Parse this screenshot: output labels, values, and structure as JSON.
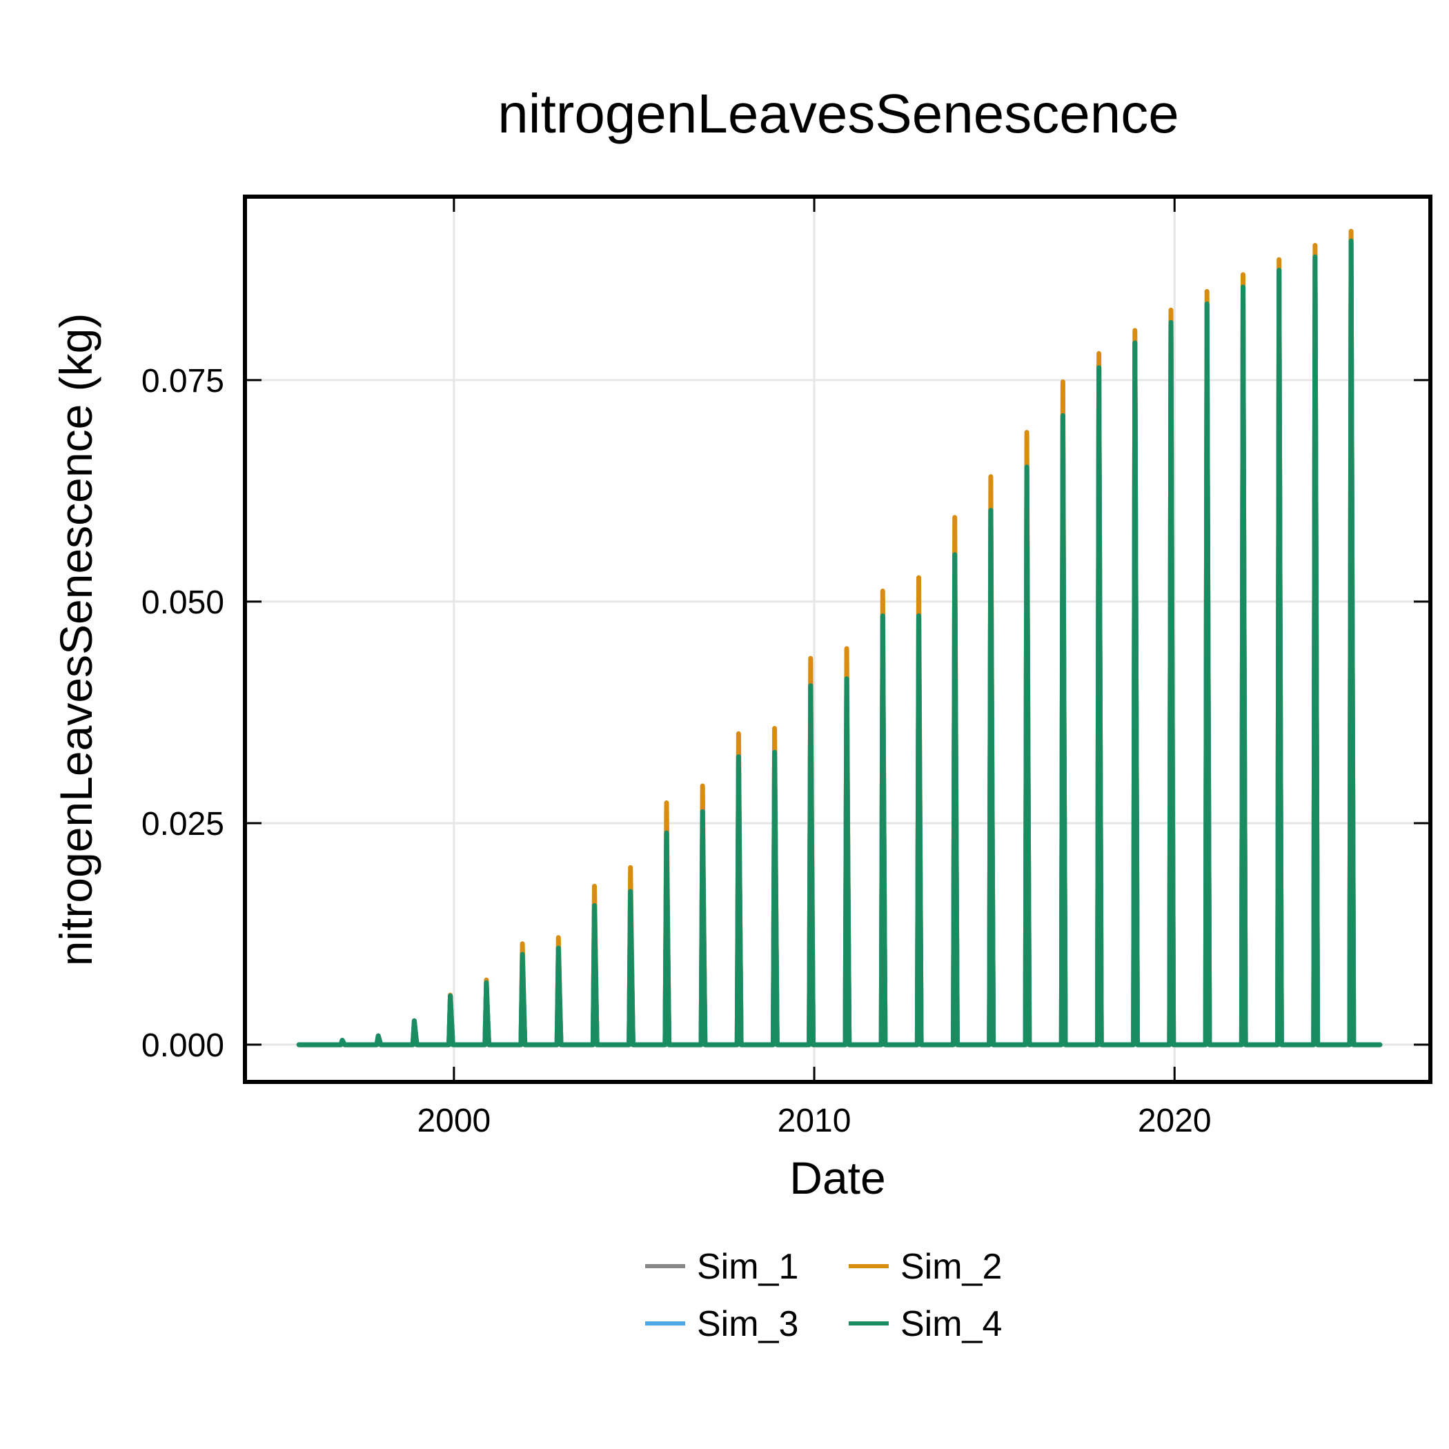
{
  "chart_data": {
    "type": "line",
    "title": "nitrogenLeavesSenescence",
    "xlabel": "Date",
    "ylabel": "nitrogenLeavesSenescence (kg)",
    "xlim": [
      1994.2,
      2027.1
    ],
    "ylim": [
      -0.0042,
      0.0957
    ],
    "x_ticks": [
      {
        "value": 2000,
        "label": "2000"
      },
      {
        "value": 2010,
        "label": "2010"
      },
      {
        "value": 2020,
        "label": "2020"
      }
    ],
    "y_ticks": [
      {
        "value": 0.0,
        "label": "0.000"
      },
      {
        "value": 0.025,
        "label": "0.025"
      },
      {
        "value": 0.05,
        "label": "0.050"
      },
      {
        "value": 0.075,
        "label": "0.075"
      }
    ],
    "grid": true,
    "legend_position": "bottom-center",
    "x_range_data": [
      1995.7,
      2025.7
    ],
    "peak_dates": [
      1996.9,
      1997.9,
      1998.9,
      1999.9,
      2000.9,
      2001.9,
      2002.9,
      2003.9,
      2004.9,
      2005.9,
      2006.9,
      2007.9,
      2008.9,
      2009.9,
      2010.9,
      2011.9,
      2012.9,
      2013.9,
      2014.9,
      2015.9,
      2016.9,
      2017.9,
      2018.9,
      2019.9,
      2020.9,
      2021.9,
      2022.9,
      2023.9,
      2024.9
    ],
    "series": [
      {
        "name": "Sim_1",
        "color": "#888888",
        "peaks": [
          0.0005,
          0.001,
          0.0027,
          0.0055,
          0.007,
          0.0102,
          0.0109,
          0.0157,
          0.0173,
          0.0239,
          0.0263,
          0.0325,
          0.033,
          0.0405,
          0.0413,
          0.0484,
          0.0484,
          0.0553,
          0.0603,
          0.0652,
          0.071,
          0.0764,
          0.0792,
          0.0815,
          0.0836,
          0.0855,
          0.0874,
          0.0889,
          0.0907
        ]
      },
      {
        "name": "Sim_2",
        "color": "#d88c10",
        "peaks": [
          0.0005,
          0.001,
          0.0027,
          0.0056,
          0.0073,
          0.0114,
          0.0121,
          0.0179,
          0.02,
          0.0273,
          0.0292,
          0.0351,
          0.0357,
          0.0436,
          0.0447,
          0.0512,
          0.0527,
          0.0595,
          0.0641,
          0.0691,
          0.0748,
          0.078,
          0.0806,
          0.0829,
          0.085,
          0.0869,
          0.0886,
          0.0902,
          0.0918
        ]
      },
      {
        "name": "Sim_3",
        "color": "#4ea6e6",
        "peaks": [
          0.0005,
          0.001,
          0.0027,
          0.0055,
          0.007,
          0.0102,
          0.0109,
          0.0157,
          0.0173,
          0.0239,
          0.0263,
          0.0325,
          0.033,
          0.0405,
          0.0413,
          0.0484,
          0.0484,
          0.0553,
          0.0603,
          0.0652,
          0.071,
          0.0764,
          0.0792,
          0.0815,
          0.0836,
          0.0855,
          0.0874,
          0.0889,
          0.0907
        ]
      },
      {
        "name": "Sim_4",
        "color": "#1a8c62",
        "peaks": [
          0.0005,
          0.001,
          0.0027,
          0.0055,
          0.007,
          0.0102,
          0.0109,
          0.0157,
          0.0173,
          0.0239,
          0.0263,
          0.0325,
          0.033,
          0.0405,
          0.0413,
          0.0484,
          0.0484,
          0.0553,
          0.0603,
          0.0652,
          0.071,
          0.0764,
          0.0792,
          0.0815,
          0.0836,
          0.0855,
          0.0874,
          0.0889,
          0.0907
        ]
      }
    ]
  }
}
